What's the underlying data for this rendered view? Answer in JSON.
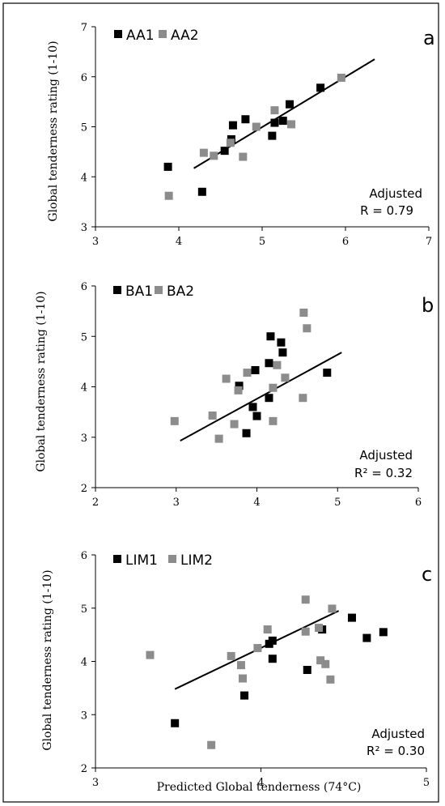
{
  "chart_data": [
    {
      "type": "scatter",
      "panel_label": "a",
      "ylabel": "Global tenderness rating (1-10)",
      "xlim": [
        3,
        7
      ],
      "ylim": [
        3,
        7
      ],
      "xticks": [
        "3",
        "4",
        "5",
        "6",
        "7"
      ],
      "yticks": [
        "3",
        "4",
        "5",
        "6",
        "7"
      ],
      "annotation": [
        "Adjusted",
        "R = 0.79"
      ],
      "legend_position": "top-left",
      "series": [
        {
          "name": "AA1",
          "color": "#000000",
          "points": [
            [
              3.87,
              4.2
            ],
            [
              4.28,
              3.7
            ],
            [
              4.55,
              4.52
            ],
            [
              4.63,
              4.75
            ],
            [
              4.65,
              5.03
            ],
            [
              4.8,
              5.15
            ],
            [
              5.12,
              4.82
            ],
            [
              5.15,
              5.08
            ],
            [
              5.25,
              5.12
            ],
            [
              5.33,
              5.45
            ],
            [
              5.7,
              5.78
            ]
          ]
        },
        {
          "name": "AA2",
          "color": "#8c8c8c",
          "points": [
            [
              3.88,
              3.62
            ],
            [
              4.3,
              4.48
            ],
            [
              4.42,
              4.42
            ],
            [
              4.62,
              4.68
            ],
            [
              4.77,
              4.4
            ],
            [
              4.93,
              5.0
            ],
            [
              5.15,
              5.33
            ],
            [
              5.35,
              5.05
            ],
            [
              5.95,
              5.98
            ]
          ]
        }
      ],
      "trendline": [
        [
          4.18,
          4.17
        ],
        [
          6.35,
          6.35
        ]
      ]
    },
    {
      "type": "scatter",
      "panel_label": "b",
      "ylabel": "Global tenderness rating (1-10)",
      "xlim": [
        2,
        6
      ],
      "ylim": [
        2,
        6
      ],
      "xticks": [
        "2",
        "3",
        "4",
        "5",
        "6"
      ],
      "yticks": [
        "2",
        "3",
        "4",
        "5",
        "6"
      ],
      "annotation": [
        "Adjusted",
        "R² = 0.32"
      ],
      "legend_position": "top-left",
      "series": [
        {
          "name": "BA1",
          "color": "#000000",
          "points": [
            [
              3.78,
              4.02
            ],
            [
              3.87,
              3.08
            ],
            [
              3.95,
              3.6
            ],
            [
              3.98,
              4.33
            ],
            [
              4.0,
              3.42
            ],
            [
              4.15,
              3.78
            ],
            [
              4.15,
              4.47
            ],
            [
              4.17,
              5.0
            ],
            [
              4.3,
              4.88
            ],
            [
              4.32,
              4.68
            ],
            [
              4.87,
              4.28
            ]
          ]
        },
        {
          "name": "BA2",
          "color": "#8c8c8c",
          "points": [
            [
              2.98,
              3.32
            ],
            [
              3.45,
              3.43
            ],
            [
              3.53,
              2.97
            ],
            [
              3.62,
              4.16
            ],
            [
              3.72,
              3.26
            ],
            [
              3.77,
              3.93
            ],
            [
              3.88,
              4.28
            ],
            [
              4.2,
              3.32
            ],
            [
              4.2,
              3.98
            ],
            [
              4.25,
              4.43
            ],
            [
              4.35,
              4.18
            ],
            [
              4.57,
              3.78
            ],
            [
              4.58,
              5.47
            ],
            [
              4.62,
              5.16
            ]
          ]
        }
      ],
      "trendline": [
        [
          3.05,
          2.93
        ],
        [
          5.05,
          4.68
        ]
      ]
    },
    {
      "type": "scatter",
      "panel_label": "c",
      "ylabel": "Global tenderness rating (1-10)",
      "xlabel": "Predicted Global tenderness (74°C)",
      "xlim": [
        3,
        5
      ],
      "ylim": [
        2,
        6
      ],
      "xticks": [
        "3",
        "4",
        "5"
      ],
      "yticks": [
        "2",
        "3",
        "4",
        "5",
        "6"
      ],
      "annotation": [
        "Adjusted",
        "R² = 0.30"
      ],
      "legend_position": "top-left",
      "series": [
        {
          "name": "LIM1",
          "color": "#000000",
          "points": [
            [
              3.48,
              2.84
            ],
            [
              3.9,
              3.36
            ],
            [
              4.05,
              4.33
            ],
            [
              4.07,
              4.39
            ],
            [
              4.07,
              4.05
            ],
            [
              4.28,
              3.84
            ],
            [
              4.37,
              4.6
            ],
            [
              4.55,
              4.82
            ],
            [
              4.64,
              4.44
            ],
            [
              4.74,
              4.55
            ]
          ]
        },
        {
          "name": "LIM2",
          "color": "#8c8c8c",
          "points": [
            [
              3.33,
              4.12
            ],
            [
              3.7,
              2.43
            ],
            [
              3.82,
              4.1
            ],
            [
              3.88,
              3.93
            ],
            [
              3.89,
              3.68
            ],
            [
              3.98,
              4.25
            ],
            [
              4.04,
              4.6
            ],
            [
              4.27,
              5.16
            ],
            [
              4.27,
              4.56
            ],
            [
              4.35,
              4.63
            ],
            [
              4.36,
              4.02
            ],
            [
              4.39,
              3.95
            ],
            [
              4.42,
              3.66
            ],
            [
              4.43,
              4.99
            ]
          ]
        }
      ],
      "trendline": [
        [
          3.48,
          3.48
        ],
        [
          4.47,
          4.95
        ]
      ]
    }
  ]
}
